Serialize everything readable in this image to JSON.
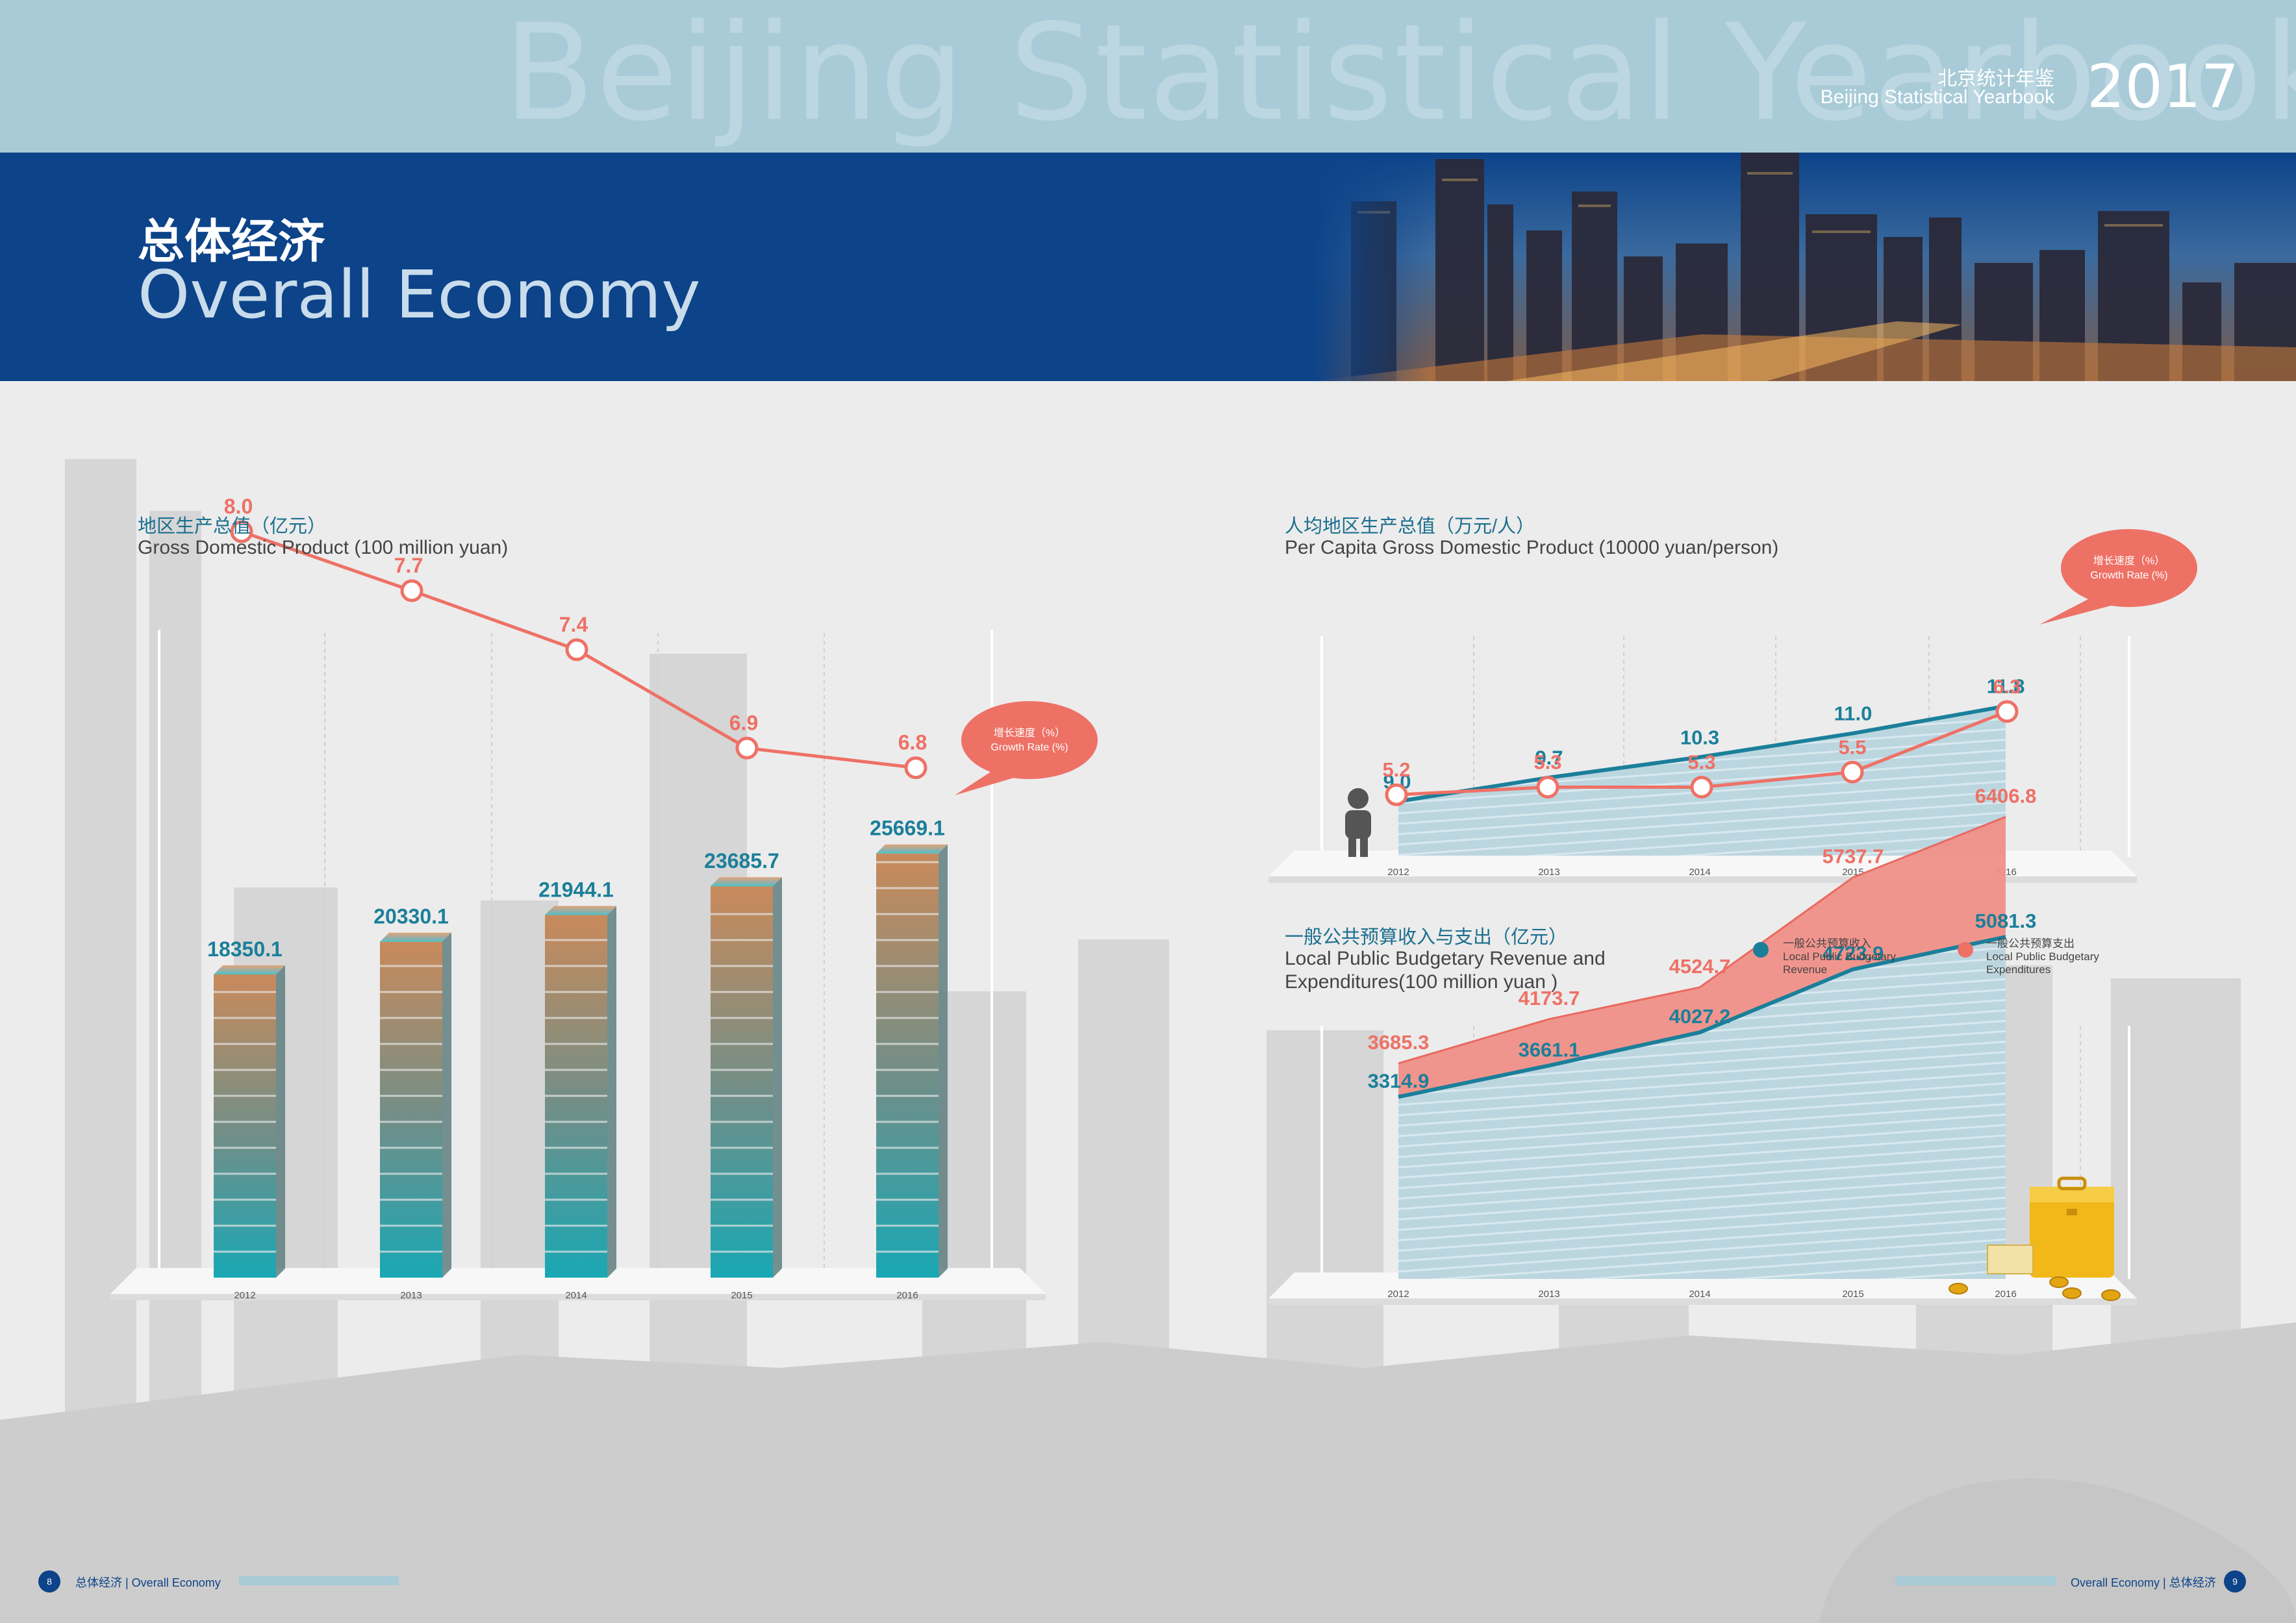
{
  "header": {
    "watermark": "Beijing Statistical Yearbook",
    "yearbook_cn": "北京统计年鉴",
    "yearbook_en": "Beijing Statistical Yearbook",
    "year": "2017",
    "title_cn": "总体经济",
    "title_en": "Overall Economy"
  },
  "footer": {
    "left_page": "8",
    "left_text": "总体经济 | Overall Economy",
    "right_page": "9",
    "right_text": "Overall Economy | 总体经济"
  },
  "colors": {
    "teal": "#1b7f9a",
    "salmon": "#ee7166",
    "navy": "#0c4389",
    "light_blue": "#a9cbd7"
  },
  "icons": [
    "person-icon",
    "briefcase-icon",
    "coins-icon"
  ],
  "chart_data": [
    {
      "type": "bar",
      "title_cn": "地区生产总值（亿元）",
      "title_en": "Gross Domestic Product (100 million yuan)",
      "categories": [
        "2012",
        "2013",
        "2014",
        "2015",
        "2016"
      ],
      "values": [
        18350.1,
        20330.1,
        21944.1,
        23685.7,
        25669.1
      ],
      "value_labels": [
        "18350.1",
        "20330.1",
        "21944.1",
        "23685.7",
        "25669.1"
      ],
      "growth_rate": [
        8.0,
        7.7,
        7.4,
        6.9,
        6.8
      ],
      "growth_labels": [
        "8.0",
        "7.7",
        "7.4",
        "6.9",
        "6.8"
      ],
      "callout_cn": "增长速度（%）",
      "callout_en": "Growth Rate (%)"
    },
    {
      "type": "area",
      "title_cn": "人均地区生产总值（万元/人）",
      "title_en": "Per Capita Gross Domestic Product (10000 yuan/person)",
      "categories": [
        "2012",
        "2013",
        "2014",
        "2015",
        "2016"
      ],
      "values": [
        9.0,
        9.7,
        10.3,
        11.0,
        11.8
      ],
      "value_labels": [
        "9.0",
        "9.7",
        "10.3",
        "11.0",
        "11.8"
      ],
      "growth_rate": [
        5.2,
        5.3,
        5.3,
        5.5,
        6.3
      ],
      "growth_labels": [
        "5.2",
        "5.3",
        "5.3",
        "5.5",
        "6.3"
      ],
      "callout_cn": "增长速度（%）",
      "callout_en": "Growth Rate (%)"
    },
    {
      "type": "area",
      "title_cn": "一般公共预算收入与支出（亿元）",
      "title_en_1": "Local Public Budgetary Revenue and",
      "title_en_2": "Expenditures(100 million yuan )",
      "categories": [
        "2012",
        "2013",
        "2014",
        "2015",
        "2016"
      ],
      "series": [
        {
          "name_cn": "一般公共预算收入",
          "name_en_1": "Local Public Budgetary",
          "name_en_2": "Revenue",
          "values": [
            3314.9,
            3661.1,
            4027.2,
            4723.9,
            5081.3
          ],
          "labels": [
            "3314.9",
            "3661.1",
            "4027.2",
            "4723.9",
            "5081.3"
          ]
        },
        {
          "name_cn": "一般公共预算支出",
          "name_en_1": "Local Public Budgetary",
          "name_en_2": "Expenditures",
          "values": [
            3685.3,
            4173.7,
            4524.7,
            5737.7,
            6406.8
          ],
          "labels": [
            "3685.3",
            "4173.7",
            "4524.7",
            "5737.7",
            "6406.8"
          ]
        }
      ]
    }
  ]
}
